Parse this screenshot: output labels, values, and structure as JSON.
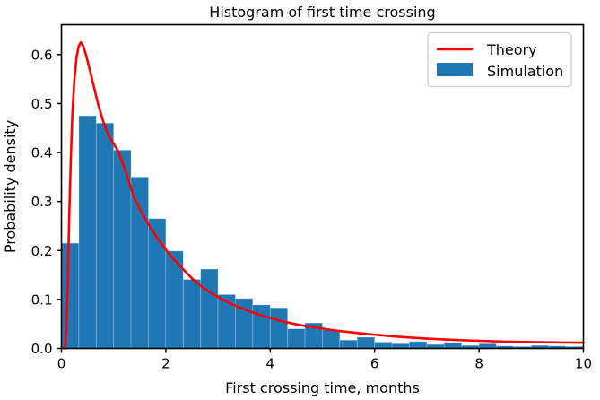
{
  "figure": {
    "background": "#ffffff",
    "axes_edge_color": "#000000"
  },
  "chart_data": {
    "type": "bar",
    "subtype": "histogram-with-theory-line",
    "title": "Histogram of first time crossing",
    "xlabel": "First crossing time, months",
    "ylabel": "Probability density",
    "xlim": [
      0,
      10
    ],
    "ylim": [
      0,
      0.661
    ],
    "grid": false,
    "x_ticks": [
      {
        "value": 0,
        "label": "0"
      },
      {
        "value": 2,
        "label": "2"
      },
      {
        "value": 4,
        "label": "4"
      },
      {
        "value": 6,
        "label": "6"
      },
      {
        "value": 8,
        "label": "8"
      },
      {
        "value": 10,
        "label": "10"
      }
    ],
    "y_ticks": [
      {
        "value": 0.0,
        "label": "0.0"
      },
      {
        "value": 0.1,
        "label": "0.1"
      },
      {
        "value": 0.2,
        "label": "0.2"
      },
      {
        "value": 0.3,
        "label": "0.3"
      },
      {
        "value": 0.4,
        "label": "0.4"
      },
      {
        "value": 0.5,
        "label": "0.5"
      },
      {
        "value": 0.6,
        "label": "0.6"
      }
    ],
    "legend": {
      "position": "upper-right",
      "entries": [
        {
          "label": "Theory",
          "marker": "line",
          "color": "#ff0000"
        },
        {
          "label": "Simulation",
          "marker": "patch",
          "color": "#1f77b4"
        }
      ]
    },
    "series": [
      {
        "name": "Simulation",
        "kind": "histogram",
        "color": "#1f77b4",
        "bin_start": 0,
        "bin_width": 0.3333,
        "densities": [
          0.215,
          0.475,
          0.46,
          0.405,
          0.35,
          0.265,
          0.199,
          0.141,
          0.162,
          0.11,
          0.102,
          0.089,
          0.083,
          0.04,
          0.052,
          0.038,
          0.017,
          0.023,
          0.013,
          0.0095,
          0.014,
          0.008,
          0.012,
          0.006,
          0.0095,
          0.005,
          0.004,
          0.006,
          0.005,
          0.004
        ]
      },
      {
        "name": "Theory",
        "kind": "line",
        "color": "#ff0000",
        "points": [
          [
            0.07,
            0.0
          ],
          [
            0.095,
            0.04
          ],
          [
            0.12,
            0.13
          ],
          [
            0.15,
            0.27
          ],
          [
            0.18,
            0.39
          ],
          [
            0.21,
            0.48
          ],
          [
            0.25,
            0.55
          ],
          [
            0.29,
            0.595
          ],
          [
            0.33,
            0.617
          ],
          [
            0.37,
            0.625
          ],
          [
            0.42,
            0.617
          ],
          [
            0.48,
            0.596
          ],
          [
            0.55,
            0.566
          ],
          [
            0.62,
            0.535
          ],
          [
            0.7,
            0.5
          ],
          [
            0.8,
            0.463
          ],
          [
            0.9,
            0.435
          ],
          [
            1.0,
            0.418
          ],
          [
            1.1,
            0.4
          ],
          [
            1.25,
            0.355
          ],
          [
            1.4,
            0.305
          ],
          [
            1.55,
            0.275
          ],
          [
            1.7,
            0.248
          ],
          [
            1.85,
            0.223
          ],
          [
            2.0,
            0.202
          ],
          [
            2.15,
            0.182
          ],
          [
            2.3,
            0.165
          ],
          [
            2.5,
            0.143
          ],
          [
            2.7,
            0.125
          ],
          [
            2.9,
            0.111
          ],
          [
            3.1,
            0.099
          ],
          [
            3.3,
            0.089
          ],
          [
            3.5,
            0.08
          ],
          [
            3.75,
            0.07
          ],
          [
            4.0,
            0.062
          ],
          [
            4.25,
            0.055
          ],
          [
            4.5,
            0.049
          ],
          [
            4.75,
            0.0445
          ],
          [
            5.0,
            0.0405
          ],
          [
            5.25,
            0.0365
          ],
          [
            5.5,
            0.0335
          ],
          [
            5.75,
            0.0305
          ],
          [
            6.0,
            0.028
          ],
          [
            6.5,
            0.0235
          ],
          [
            7.0,
            0.02
          ],
          [
            7.5,
            0.0175
          ],
          [
            8.0,
            0.0155
          ],
          [
            8.5,
            0.014
          ],
          [
            9.0,
            0.013
          ],
          [
            9.5,
            0.0122
          ],
          [
            10.0,
            0.0115
          ]
        ]
      }
    ]
  }
}
